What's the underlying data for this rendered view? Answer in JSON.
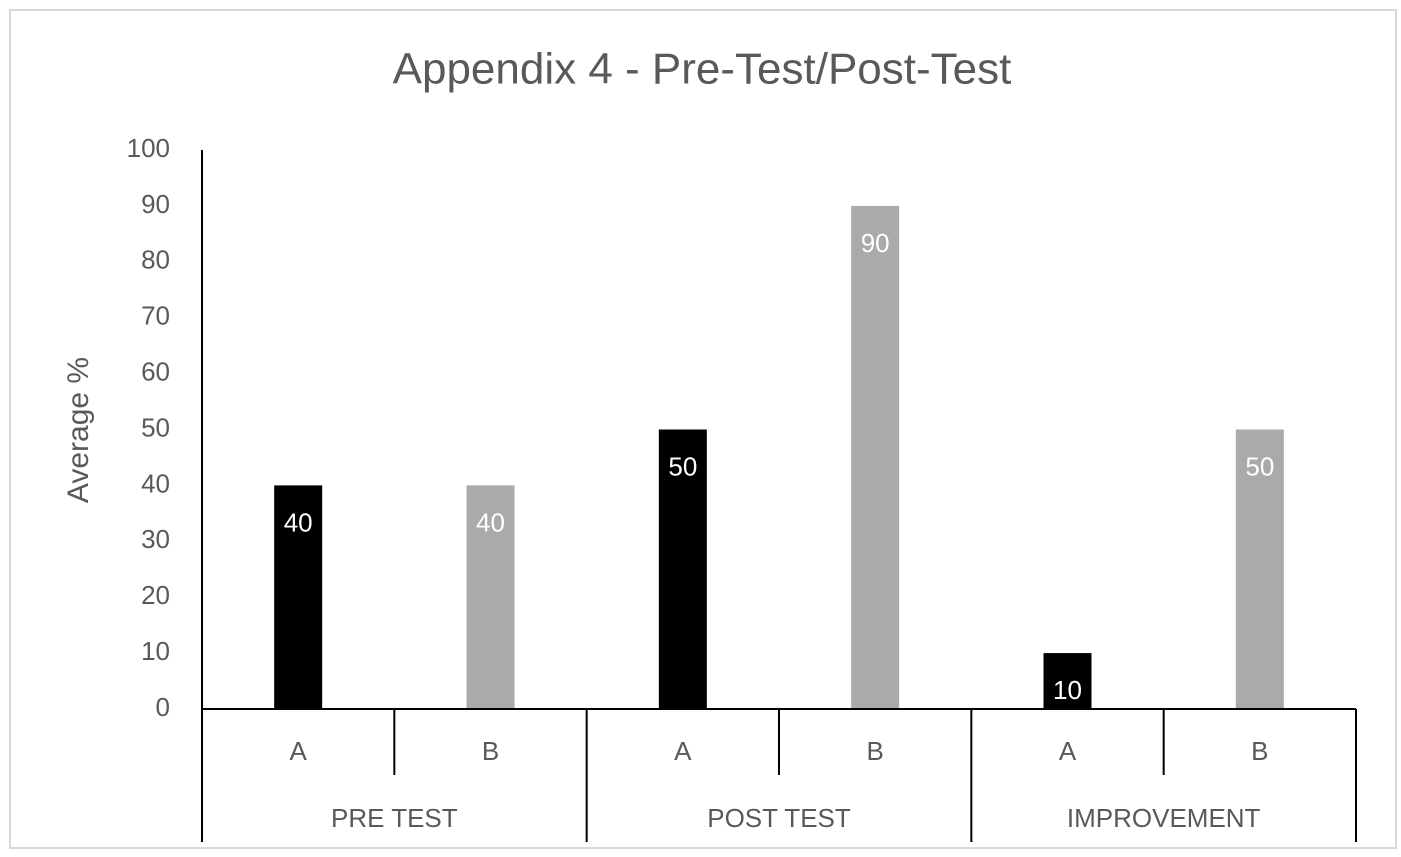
{
  "chart_data": {
    "type": "bar",
    "title": "Appendix 4 - Pre-Test/Post-Test",
    "y_label": "Average %",
    "categories": [
      "A",
      "B",
      "A",
      "B",
      "A",
      "B"
    ],
    "groups": [
      "PRE TEST",
      "POST TEST",
      "IMPROVEMENT"
    ],
    "values": [
      40,
      40,
      50,
      90,
      10,
      50
    ],
    "colors": [
      "#000000",
      "#aaaaaa",
      "#000000",
      "#aaaaaa",
      "#000000",
      "#aaaaaa"
    ],
    "ylim": [
      0,
      100
    ],
    "yticks": [
      0,
      10,
      20,
      30,
      40,
      50,
      60,
      70,
      80,
      90,
      100
    ],
    "grid": false
  }
}
